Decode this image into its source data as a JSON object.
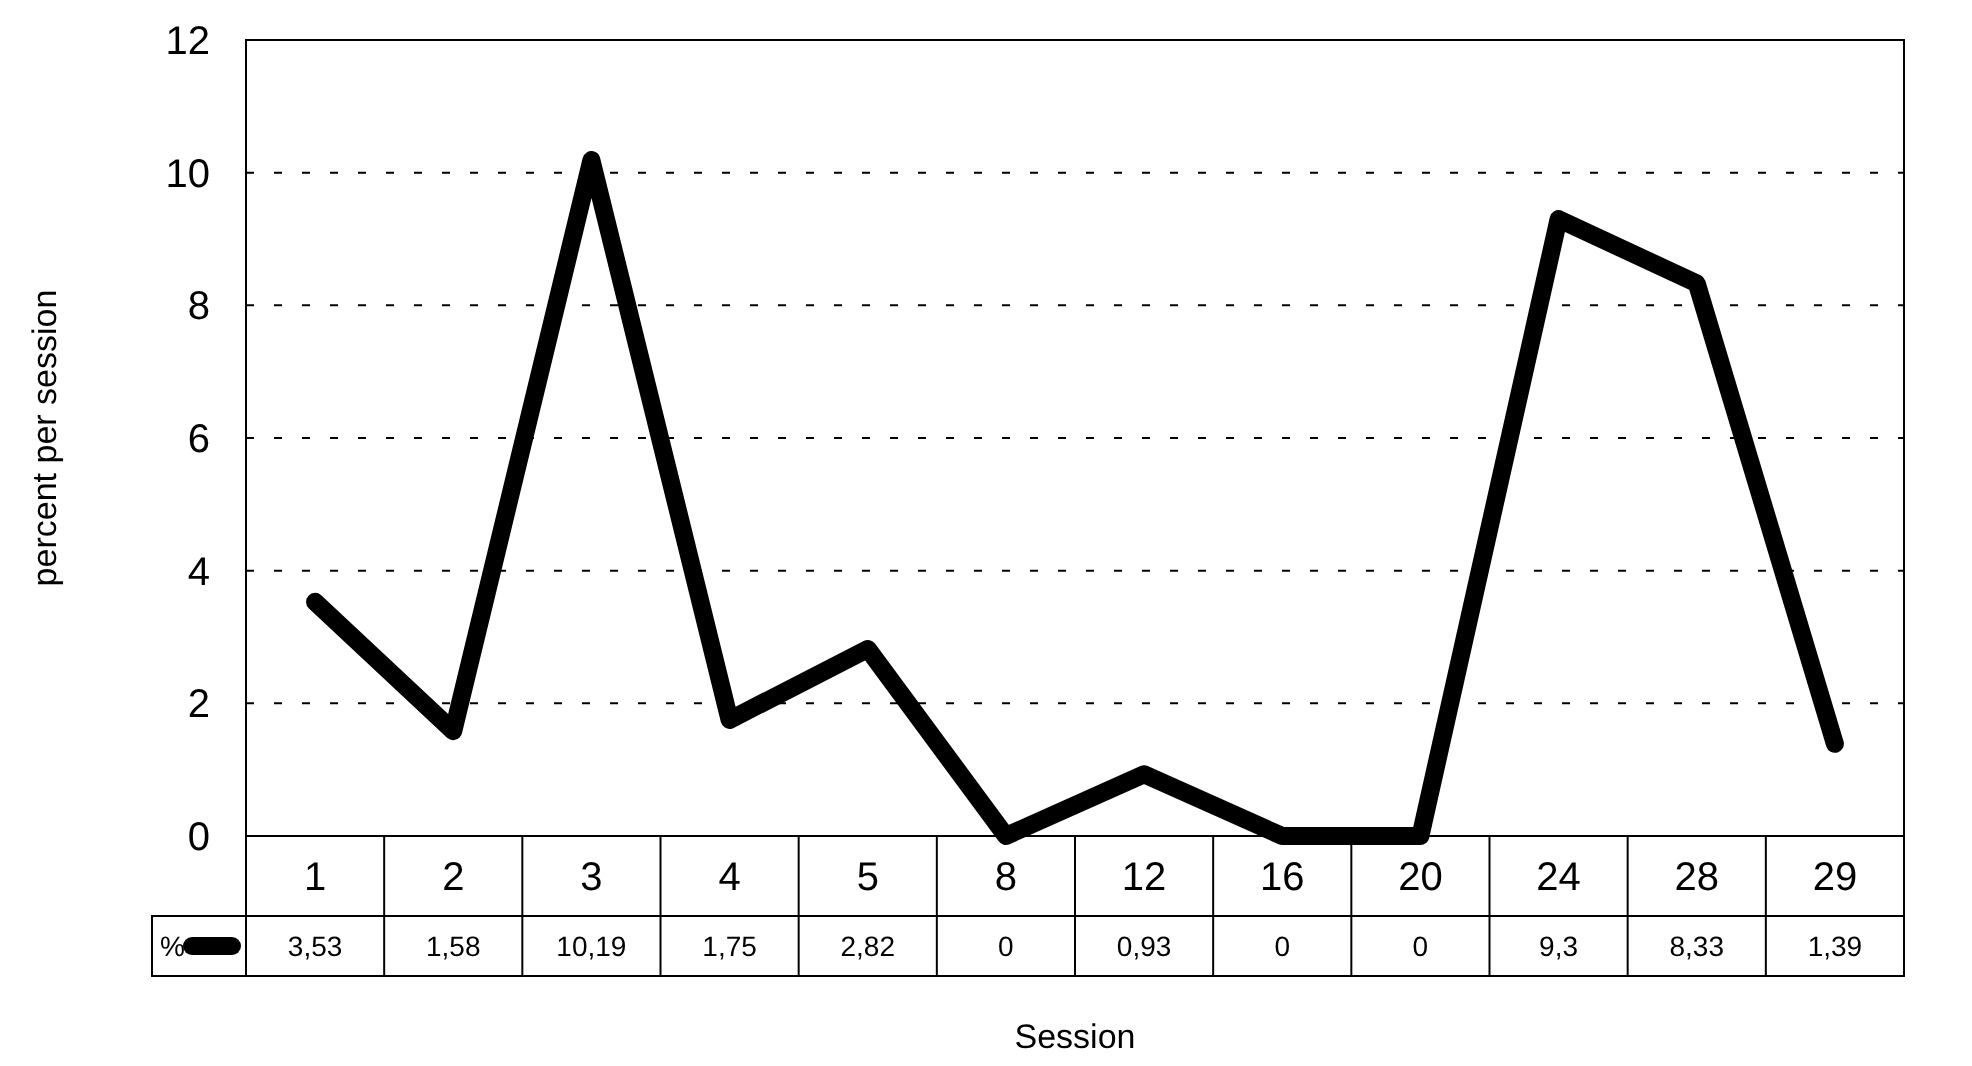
{
  "chart_data": {
    "type": "line",
    "xlabel": "Session",
    "ylabel": "percent per session",
    "categories": [
      "1",
      "2",
      "3",
      "4",
      "5",
      "8",
      "12",
      "16",
      "20",
      "24",
      "28",
      "29"
    ],
    "series": [
      {
        "name": "%",
        "color": "#000000",
        "values": [
          3.53,
          1.58,
          10.19,
          1.75,
          2.82,
          0,
          0.93,
          0,
          0,
          9.3,
          8.33,
          1.39
        ],
        "value_labels": [
          "3,53",
          "1,58",
          "10,19",
          "1,75",
          "2,82",
          "0",
          "0,93",
          "0",
          "0",
          "9,3",
          "8,33",
          "1,39"
        ]
      }
    ],
    "ylim": [
      0,
      12
    ],
    "yticks": [
      0,
      2,
      4,
      6,
      8,
      10,
      12
    ],
    "grid": "y",
    "legend": "bottom",
    "marker": "none",
    "line_style": "solid"
  }
}
